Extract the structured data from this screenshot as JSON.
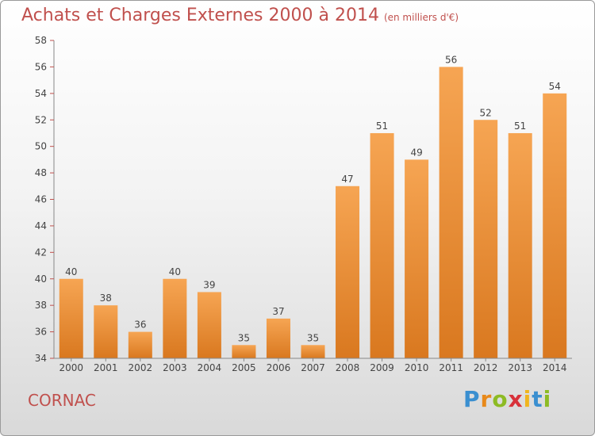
{
  "header": {
    "title": "Achats et Charges Externes 2000 à 2014",
    "subtitle": "(en milliers d'€)"
  },
  "footer": {
    "commune": "CORNAC",
    "logo_letters": [
      "P",
      "r",
      "o",
      "x",
      "i",
      "t",
      "i"
    ],
    "logo_colors": [
      "#3a8fd0",
      "#e8891a",
      "#8dbb24",
      "#d8313a",
      "#f0b51e",
      "#3a8fd0",
      "#8dbb24"
    ]
  },
  "chart_data": {
    "type": "bar",
    "title": "Achats et Charges Externes 2000 à 2014",
    "subtitle": "(en milliers d'€)",
    "categories": [
      "2000",
      "2001",
      "2002",
      "2003",
      "2004",
      "2005",
      "2006",
      "2007",
      "2008",
      "2009",
      "2010",
      "2011",
      "2012",
      "2013",
      "2014"
    ],
    "values": [
      40,
      38,
      36,
      40,
      39,
      35,
      37,
      35,
      47,
      51,
      49,
      56,
      52,
      51,
      54
    ],
    "ylim": [
      34,
      58
    ],
    "yticks": [
      34,
      36,
      38,
      40,
      42,
      44,
      46,
      48,
      50,
      52,
      54,
      56,
      58
    ],
    "grid": false,
    "bar_color_top": "#f6a553",
    "bar_color_bottom": "#d9781f",
    "axis_color": "#c0504d"
  }
}
